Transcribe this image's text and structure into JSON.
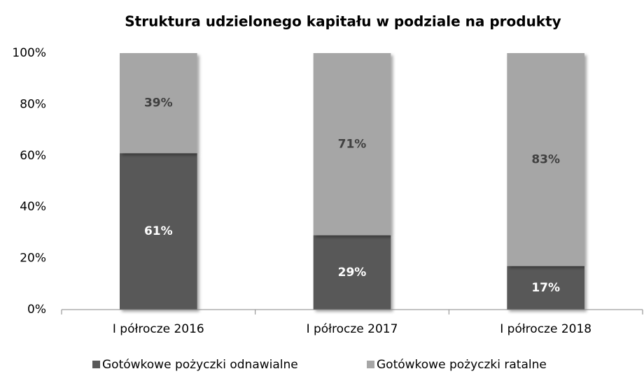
{
  "chart_data": {
    "type": "stacked_bar",
    "title": "Struktura udzielonego kapitału w podziale na produkty",
    "categories": [
      "I półrocze 2016",
      "I półrocze 2017",
      "I półrocze 2018"
    ],
    "series": [
      {
        "name": "Gotówkowe pożyczki odnawialne",
        "color": "#595959",
        "values": [
          61,
          29,
          17
        ],
        "value_labels": [
          "61%",
          "29%",
          "17%"
        ]
      },
      {
        "name": "Gotówkowe pożyczki ratalne",
        "color": "#a6a6a6",
        "values": [
          39,
          71,
          83
        ],
        "value_labels": [
          "39%",
          "71%",
          "83%"
        ]
      }
    ],
    "ylim": [
      0,
      100
    ],
    "yticks": [
      {
        "value": 0,
        "label": "0%"
      },
      {
        "value": 20,
        "label": "20%"
      },
      {
        "value": 40,
        "label": "40%"
      },
      {
        "value": 60,
        "label": "60%"
      },
      {
        "value": 80,
        "label": "80%"
      },
      {
        "value": 100,
        "label": "100%"
      }
    ],
    "grid": false,
    "legend": "bottom"
  }
}
